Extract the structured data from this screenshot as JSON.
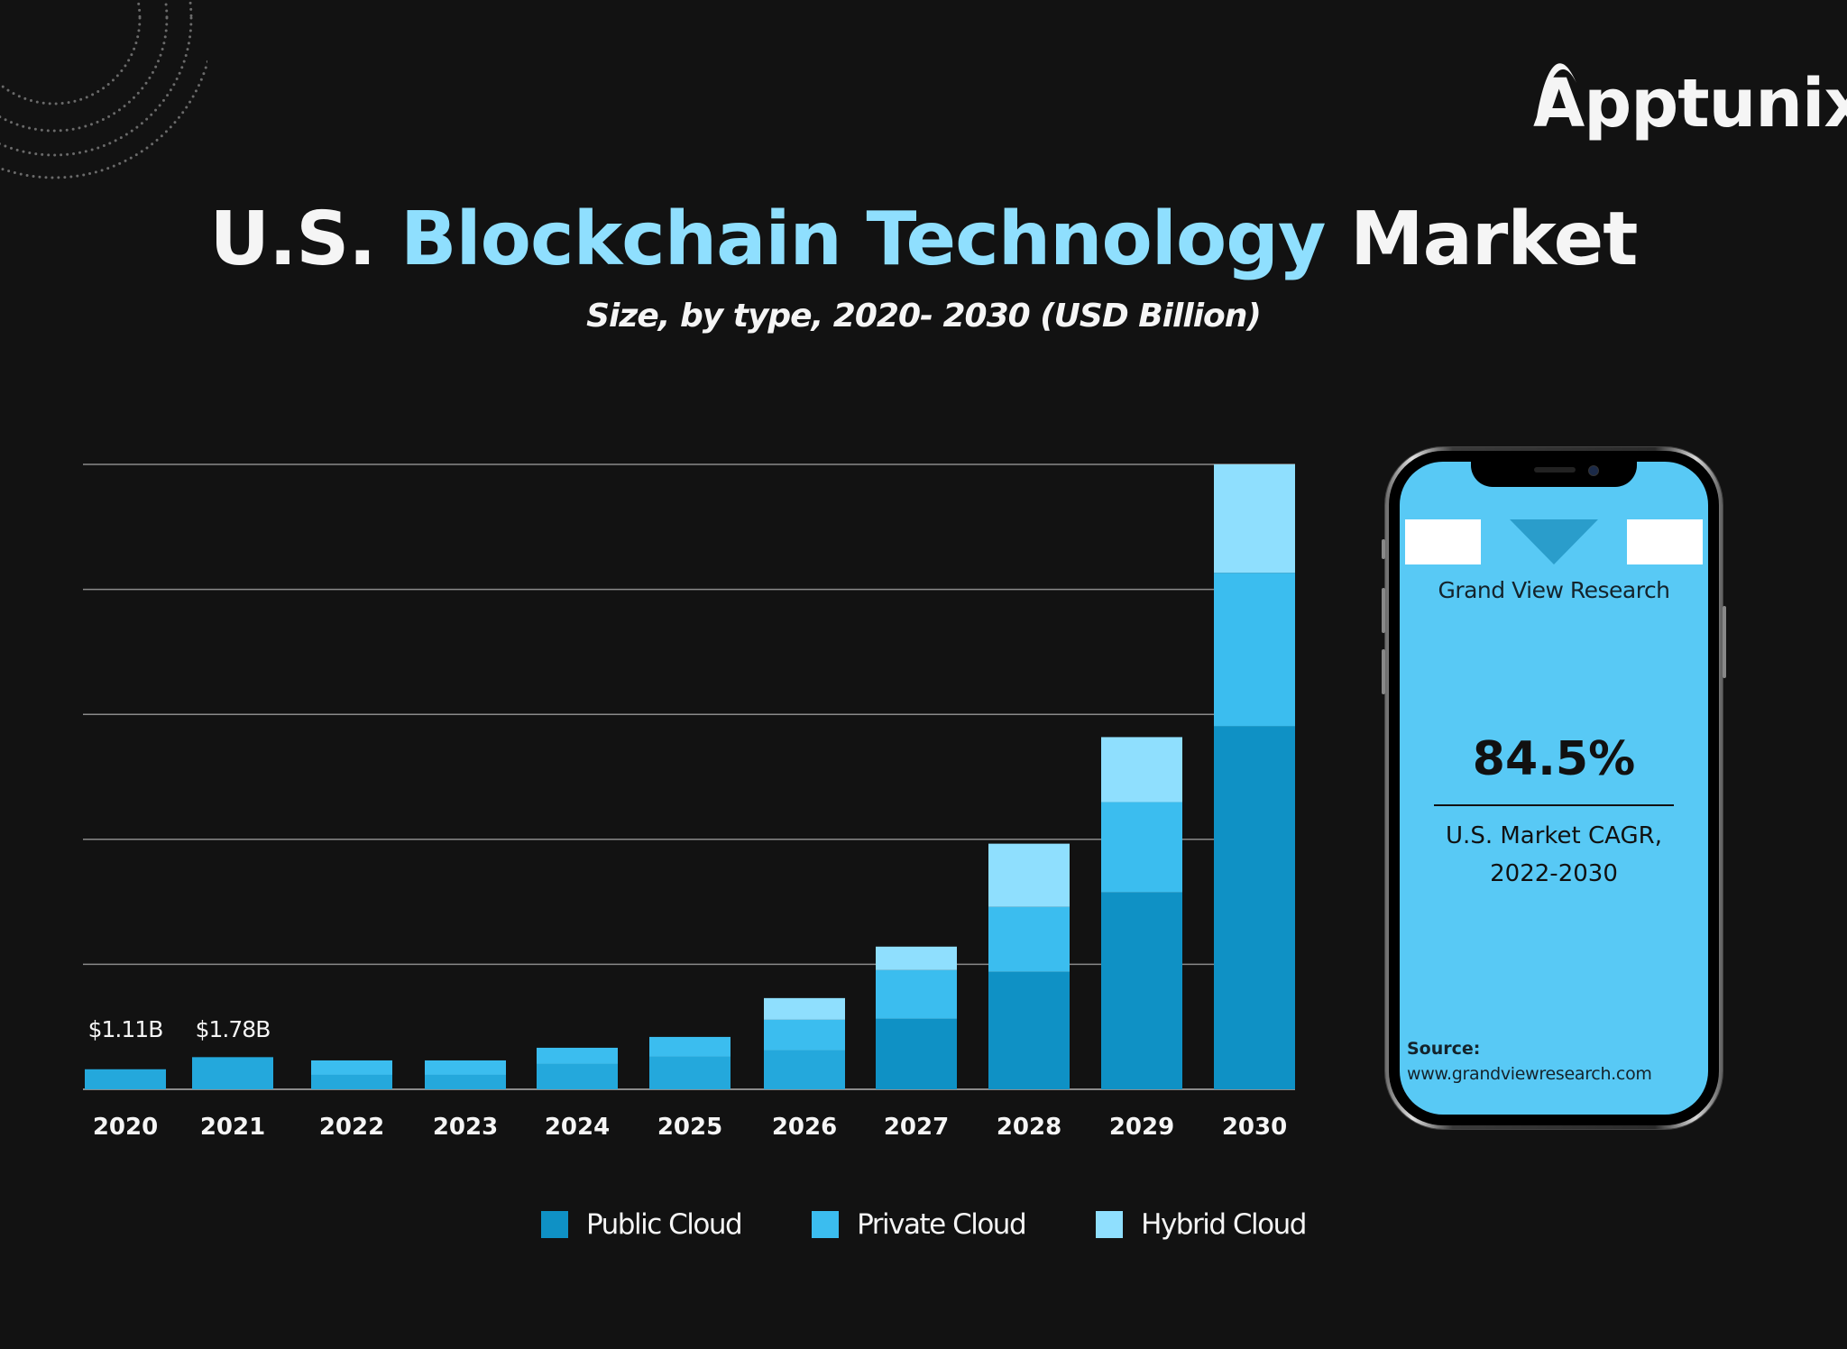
{
  "brand": {
    "logo_text": "Apptunix"
  },
  "header": {
    "title_parts": {
      "prefix": "U.S.",
      "highlight": "Blockchain Technology",
      "suffix": "Market"
    },
    "subtitle": "Size, by type, 2020- 2030 (USD Billion)"
  },
  "colors": {
    "background": "#121212",
    "public_cloud": "#0f91c5",
    "public_cloud_early": "#24a8dc",
    "private_cloud": "#3bbdef",
    "hybrid_cloud": "#8fdffe",
    "title_accent": "#8fdffe",
    "phone_screen": "#58c9f5"
  },
  "chart_data": {
    "type": "bar",
    "stacked": true,
    "title": "U.S. Blockchain Technology Market",
    "subtitle": "Size, by type, 2020- 2030 (USD Billion)",
    "xlabel": "",
    "ylabel": "USD Billion",
    "categories": [
      "2020",
      "2021",
      "2022",
      "2023",
      "2024",
      "2025",
      "2026",
      "2027",
      "2028",
      "2029",
      "2030"
    ],
    "series": [
      {
        "name": "Public Cloud",
        "values": [
          1.11,
          1.78,
          0.8,
          0.8,
          1.4,
          1.8,
          2.15,
          3.9,
          6.5,
          10.9,
          20.1
        ]
      },
      {
        "name": "Private Cloud",
        "values": [
          0,
          0,
          0.8,
          0.8,
          0.9,
          1.1,
          1.7,
          2.7,
          3.6,
          5.0,
          8.5
        ]
      },
      {
        "name": "Hybrid Cloud",
        "values": [
          0,
          0,
          0,
          0,
          0,
          0,
          1.2,
          1.3,
          3.5,
          3.6,
          6.0
        ]
      }
    ],
    "data_labels": [
      {
        "category": "2020",
        "text": "$1.11B"
      },
      {
        "category": "2021",
        "text": "$1.78B"
      }
    ],
    "ylim": [
      0,
      34.6
    ],
    "y_gridlines": [
      6.92,
      13.84,
      20.76,
      27.68,
      34.6
    ],
    "y_tick_labels_shown": false,
    "grid": true,
    "legend": {
      "position": "bottom",
      "entries": [
        "Public Cloud",
        "Private Cloud",
        "Hybrid Cloud"
      ]
    }
  },
  "callout": {
    "publisher": "Grand View Research",
    "cagr_value": "84.5%",
    "cagr_label_line1": "U.S. Market CAGR,",
    "cagr_label_line2": "2022-2030",
    "source_heading": "Source:",
    "source_url": "www.grandviewresearch.com"
  }
}
